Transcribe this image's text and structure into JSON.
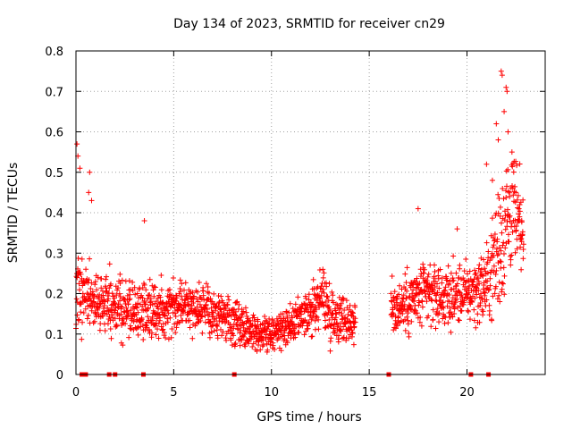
{
  "chart_data": {
    "type": "scatter",
    "title": "Day 134 of 2023, SRMTID for receiver cn29",
    "xlabel": "GPS time / hours",
    "ylabel": "SRMTID / TECUs",
    "xlim": [
      0,
      24
    ],
    "ylim": [
      0,
      0.8
    ],
    "xticks": [
      0,
      5,
      10,
      15,
      20
    ],
    "yticks": [
      0,
      0.1,
      0.2,
      0.3,
      0.4,
      0.5,
      0.6,
      0.7,
      0.8
    ],
    "xtick_labels": [
      "0",
      "5",
      "10",
      "15",
      "20"
    ],
    "ytick_labels": [
      "0",
      "0.1",
      "0.2",
      "0.3",
      "0.4",
      "0.5",
      "0.6",
      "0.7",
      "0.8"
    ],
    "grid": true,
    "marker": "+",
    "color": "#ff0000",
    "gap_hours": [
      14.3,
      16.1
    ],
    "baseline_markers_x": [
      0.3,
      0.45,
      0.5,
      1.7,
      2.0,
      3.45,
      8.1,
      16.0,
      20.2,
      21.1
    ],
    "envelope": {
      "x": [
        0.0,
        0.2,
        0.5,
        1.0,
        2.0,
        3.0,
        4.0,
        5.0,
        6.0,
        7.0,
        8.0,
        9.0,
        10.0,
        11.0,
        12.0,
        12.6,
        13.0,
        14.2,
        16.1,
        17.0,
        18.0,
        19.0,
        20.0,
        21.0,
        21.5,
        21.8,
        22.3,
        22.9
      ],
      "mean": [
        0.22,
        0.2,
        0.2,
        0.18,
        0.17,
        0.16,
        0.15,
        0.18,
        0.17,
        0.15,
        0.13,
        0.11,
        0.1,
        0.12,
        0.15,
        0.2,
        0.15,
        0.13,
        0.16,
        0.18,
        0.2,
        0.19,
        0.2,
        0.22,
        0.3,
        0.35,
        0.42,
        0.33
      ],
      "spread": [
        0.12,
        0.08,
        0.07,
        0.06,
        0.06,
        0.06,
        0.06,
        0.06,
        0.05,
        0.05,
        0.05,
        0.04,
        0.04,
        0.04,
        0.05,
        0.07,
        0.06,
        0.05,
        0.06,
        0.07,
        0.07,
        0.07,
        0.06,
        0.08,
        0.14,
        0.16,
        0.14,
        0.08
      ]
    },
    "highlights": [
      {
        "x": 0.05,
        "y": 0.57
      },
      {
        "x": 0.1,
        "y": 0.54
      },
      {
        "x": 0.2,
        "y": 0.51
      },
      {
        "x": 0.7,
        "y": 0.5
      },
      {
        "x": 0.65,
        "y": 0.45
      },
      {
        "x": 0.8,
        "y": 0.43
      },
      {
        "x": 3.5,
        "y": 0.38
      },
      {
        "x": 17.5,
        "y": 0.41
      },
      {
        "x": 19.5,
        "y": 0.36
      },
      {
        "x": 21.5,
        "y": 0.62
      },
      {
        "x": 21.75,
        "y": 0.75
      },
      {
        "x": 21.8,
        "y": 0.74
      },
      {
        "x": 22.0,
        "y": 0.71
      },
      {
        "x": 22.05,
        "y": 0.7
      },
      {
        "x": 21.9,
        "y": 0.65
      },
      {
        "x": 22.1,
        "y": 0.6
      },
      {
        "x": 21.6,
        "y": 0.58
      },
      {
        "x": 22.3,
        "y": 0.55
      },
      {
        "x": 22.5,
        "y": 0.45
      },
      {
        "x": 22.7,
        "y": 0.42
      },
      {
        "x": 21.0,
        "y": 0.52
      },
      {
        "x": 22.8,
        "y": 0.38
      },
      {
        "x": 21.3,
        "y": 0.48
      }
    ]
  }
}
